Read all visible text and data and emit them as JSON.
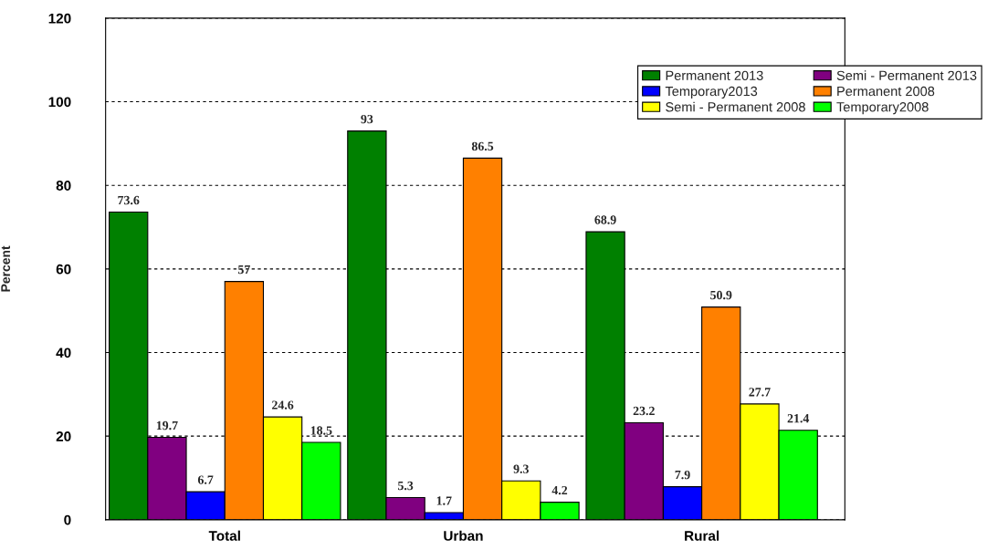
{
  "chart_data": {
    "type": "bar",
    "ylabel": "Percent",
    "categories": [
      "Total",
      "Urban",
      "Rural"
    ],
    "series": [
      {
        "name": "Permanent 2013",
        "color": "#008000",
        "values": [
          73.6,
          93,
          68.9
        ]
      },
      {
        "name": "Semi - Permanent 2013",
        "color": "#800080",
        "values": [
          19.7,
          5.3,
          23.2
        ]
      },
      {
        "name": "Temporary2013",
        "color": "#0000ff",
        "values": [
          6.7,
          1.7,
          7.9
        ]
      },
      {
        "name": "Permanent 2008",
        "color": "#ff8000",
        "values": [
          57,
          86.5,
          50.9
        ]
      },
      {
        "name": "Semi - Permanent 2008",
        "color": "#ffff00",
        "values": [
          24.6,
          9.3,
          27.7
        ]
      },
      {
        "name": "Temporary2008",
        "color": "#00ff00",
        "values": [
          18.5,
          4.2,
          21.4
        ]
      }
    ],
    "ylim": [
      0,
      120
    ],
    "yticks": [
      0,
      20,
      40,
      60,
      80,
      100,
      120
    ],
    "grid": "y",
    "legend": "top right",
    "data_labels": true
  }
}
